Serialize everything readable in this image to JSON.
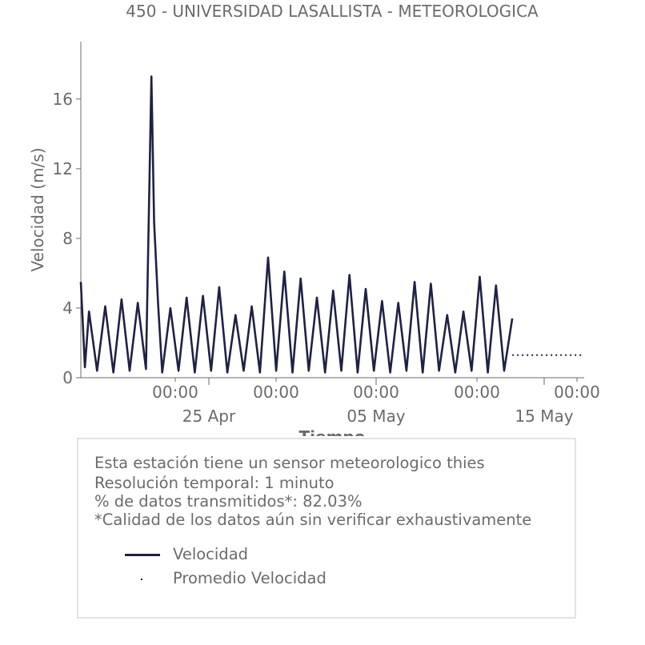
{
  "chart_data": {
    "type": "line",
    "title": "450 - UNIVERSIDAD LASALLISTA - METEOROLOGICA",
    "xlabel": "Tiempo",
    "ylabel": "Velocidad (m/s)",
    "ylim": [
      0,
      19.3
    ],
    "xlim": [
      "2025-04-15 00:00",
      "2025-05-15 22:00"
    ],
    "yticks": [
      0,
      4,
      8,
      12,
      16
    ],
    "xticks_minor": [
      "00:00",
      "00:00",
      "00:00",
      "00:00",
      "00:00"
    ],
    "xticks_major": [
      "25 Apr",
      "05 May",
      "15 May"
    ],
    "series": [
      {
        "name": "Velocidad",
        "style": "line",
        "color": "#1f2145",
        "x": [
          "2025-04-15 00:00",
          "2025-04-15 06:00",
          "2025-04-15 12:00",
          "2025-04-16 00:00",
          "2025-04-16 12:00",
          "2025-04-17 00:00",
          "2025-04-17 12:00",
          "2025-04-18 00:00",
          "2025-04-18 12:00",
          "2025-04-19 00:00",
          "2025-04-19 08:00",
          "2025-04-19 12:00",
          "2025-04-19 18:00",
          "2025-04-20 00:00",
          "2025-04-20 12:00",
          "2025-04-21 00:00",
          "2025-04-21 12:00",
          "2025-04-22 00:00",
          "2025-04-22 12:00",
          "2025-04-23 00:00",
          "2025-04-23 12:00",
          "2025-04-24 00:00",
          "2025-04-24 12:00",
          "2025-04-25 00:00",
          "2025-04-25 12:00",
          "2025-04-26 00:00",
          "2025-04-26 12:00",
          "2025-04-27 00:00",
          "2025-04-27 12:00",
          "2025-04-28 00:00",
          "2025-04-28 12:00",
          "2025-04-29 00:00",
          "2025-04-29 12:00",
          "2025-04-30 00:00",
          "2025-04-30 12:00",
          "2025-05-01 00:00",
          "2025-05-01 12:00",
          "2025-05-02 00:00",
          "2025-05-02 12:00",
          "2025-05-03 00:00",
          "2025-05-03 12:00",
          "2025-05-04 00:00",
          "2025-05-04 12:00",
          "2025-05-05 00:00",
          "2025-05-05 12:00",
          "2025-05-06 00:00",
          "2025-05-06 12:00",
          "2025-05-07 00:00",
          "2025-05-07 12:00",
          "2025-05-08 00:00",
          "2025-05-08 12:00",
          "2025-05-09 00:00",
          "2025-05-09 12:00",
          "2025-05-10 00:00",
          "2025-05-10 12:00",
          "2025-05-11 00:00",
          "2025-05-11 12:00"
        ],
        "y": [
          5.5,
          0.6,
          3.8,
          0.4,
          4.1,
          0.3,
          4.5,
          0.4,
          4.3,
          0.5,
          17.3,
          8.9,
          4.2,
          0.3,
          4.0,
          0.4,
          4.6,
          0.3,
          4.7,
          0.4,
          5.2,
          0.3,
          3.6,
          0.4,
          4.1,
          0.3,
          6.9,
          0.4,
          6.1,
          0.3,
          5.7,
          0.4,
          4.6,
          0.3,
          5.0,
          0.4,
          5.9,
          0.3,
          5.1,
          0.4,
          4.4,
          0.3,
          4.3,
          0.4,
          5.5,
          0.3,
          5.4,
          0.4,
          3.6,
          0.3,
          3.8,
          0.4,
          5.8,
          0.3,
          5.3,
          0.4,
          3.4
        ]
      },
      {
        "name": "Promedio Velocidad",
        "style": "dotted",
        "color": "#1f2145",
        "x": [
          "2025-05-11 12:00",
          "2025-05-15 22:00"
        ],
        "y": [
          1.3,
          1.3
        ]
      }
    ],
    "grid": false,
    "legend_placement": "below"
  },
  "info": {
    "lines": [
      "Esta estación tiene un sensor meteorologico thies",
      "Resolución temporal: 1 minuto",
      "% de datos transmitidos*: 82.03%",
      "*Calidad de los datos aún sin verificar exhaustivamente"
    ],
    "legend": [
      "Velocidad",
      "Promedio Velocidad"
    ]
  }
}
